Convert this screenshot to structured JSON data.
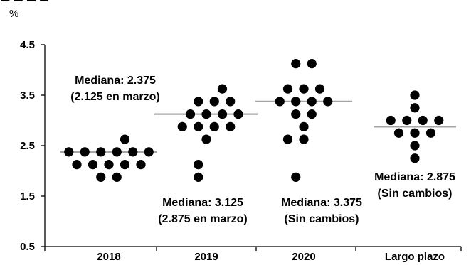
{
  "chart_data": {
    "type": "scatter",
    "ylabel": "%",
    "ylim": [
      0.5,
      4.5
    ],
    "yticks": [
      "0.5",
      "1.5",
      "2.5",
      "3.5",
      "4.5"
    ],
    "grid": false,
    "categories": [
      "2018",
      "2019",
      "2020",
      "Largo plazo"
    ],
    "series": [
      {
        "category": "2018",
        "points": [
          {
            "x": 1,
            "y": 2.625
          },
          {
            "x": -2.5,
            "y": 2.375
          },
          {
            "x": -1.5,
            "y": 2.375
          },
          {
            "x": -0.5,
            "y": 2.375
          },
          {
            "x": 0.5,
            "y": 2.375
          },
          {
            "x": 1.5,
            "y": 2.375
          },
          {
            "x": 2.5,
            "y": 2.375
          },
          {
            "x": -2,
            "y": 2.125
          },
          {
            "x": -1,
            "y": 2.125
          },
          {
            "x": 0,
            "y": 2.125
          },
          {
            "x": 1,
            "y": 2.125
          },
          {
            "x": 2,
            "y": 2.125
          },
          {
            "x": -0.5,
            "y": 1.875
          },
          {
            "x": 0.5,
            "y": 1.875
          }
        ],
        "median": 2.375
      },
      {
        "category": "2019",
        "points": [
          {
            "x": 1,
            "y": 3.625
          },
          {
            "x": -0.5,
            "y": 3.375
          },
          {
            "x": 0.5,
            "y": 3.375
          },
          {
            "x": 1.5,
            "y": 3.375
          },
          {
            "x": -1,
            "y": 3.125
          },
          {
            "x": 0,
            "y": 3.125
          },
          {
            "x": 1,
            "y": 3.125
          },
          {
            "x": 2,
            "y": 3.125
          },
          {
            "x": -1.5,
            "y": 2.875
          },
          {
            "x": -0.5,
            "y": 2.875
          },
          {
            "x": 0.5,
            "y": 2.875
          },
          {
            "x": 1.5,
            "y": 2.875
          },
          {
            "x": 0,
            "y": 2.625
          },
          {
            "x": -0.5,
            "y": 2.125
          },
          {
            "x": -0.5,
            "y": 1.875
          }
        ],
        "median": 3.125
      },
      {
        "category": "2020",
        "points": [
          {
            "x": -0.5,
            "y": 4.125
          },
          {
            "x": 0.5,
            "y": 4.125
          },
          {
            "x": -1,
            "y": 3.625
          },
          {
            "x": 0,
            "y": 3.625
          },
          {
            "x": 1,
            "y": 3.625
          },
          {
            "x": -1.5,
            "y": 3.375
          },
          {
            "x": -0.5,
            "y": 3.375
          },
          {
            "x": 0.5,
            "y": 3.375
          },
          {
            "x": 1.5,
            "y": 3.375
          },
          {
            "x": -0.5,
            "y": 3.125
          },
          {
            "x": 0.5,
            "y": 3.125
          },
          {
            "x": 0,
            "y": 2.875
          },
          {
            "x": -1,
            "y": 2.625
          },
          {
            "x": 0,
            "y": 2.625
          },
          {
            "x": -0.5,
            "y": 1.875
          }
        ],
        "median": 3.375
      },
      {
        "category": "Largo plazo",
        "points": [
          {
            "x": 0,
            "y": 3.5
          },
          {
            "x": 0,
            "y": 3.25
          },
          {
            "x": -1.5,
            "y": 3
          },
          {
            "x": -0.5,
            "y": 3
          },
          {
            "x": 0.5,
            "y": 3
          },
          {
            "x": 1.5,
            "y": 3
          },
          {
            "x": -1,
            "y": 2.75
          },
          {
            "x": 0,
            "y": 2.75
          },
          {
            "x": 1,
            "y": 2.75
          },
          {
            "x": 0,
            "y": 2.5
          },
          {
            "x": 0,
            "y": 2.25
          }
        ],
        "median": 2.875
      }
    ],
    "annotations": [
      {
        "category": "2018",
        "lines": [
          "Mediana: 2.375",
          "(2.125 en marzo)"
        ],
        "position": "above"
      },
      {
        "category": "2019",
        "lines": [
          "Mediana: 3.125",
          "(2.875 en marzo)"
        ],
        "position": "below"
      },
      {
        "category": "2020",
        "lines": [
          "Mediana: 3.375",
          "(Sin cambios)"
        ],
        "position": "below"
      },
      {
        "category": "Largo plazo",
        "lines": [
          "Mediana: 2.875",
          "(Sin cambios)"
        ],
        "position": "below"
      }
    ],
    "colors": {
      "dots": "#000000",
      "median_line": "#a6a6a6",
      "axis": "#000000"
    }
  }
}
